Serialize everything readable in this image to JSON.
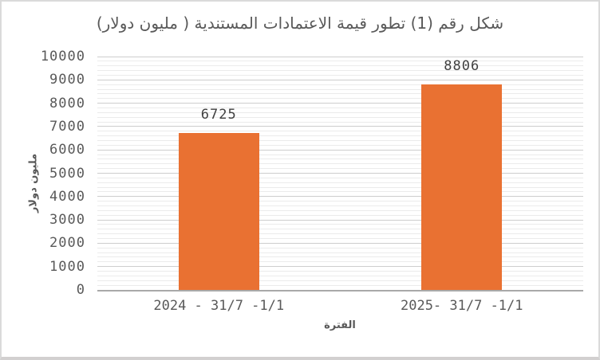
{
  "window": {
    "background": "#ffffff",
    "border_color": "#dadada"
  },
  "chart_data": {
    "type": "bar",
    "title": "شكل رقم (1) تطور قيمة الاعتمادات المستندية ( مليون دولار)",
    "categories": [
      "2024 - 31/7 -1/1",
      "2025- 31/7 -1/1"
    ],
    "values": [
      6725,
      8806
    ],
    "data_labels": [
      "6725",
      "8806"
    ],
    "xlabel": "الفترة",
    "ylabel": "مليون دولار",
    "ylim": [
      0,
      10000
    ],
    "y_major_step": 1000,
    "y_minor_step": 200,
    "y_tick_labels": [
      "0",
      "1000",
      "2000",
      "3000",
      "4000",
      "5000",
      "6000",
      "7000",
      "8000",
      "9000",
      "10000"
    ],
    "grid": "horizontal major and minor gridlines",
    "legend_position": "none",
    "bar_color": "#E97132",
    "title_color": "#595959",
    "tick_color": "#595959",
    "data_label_color": "#404040",
    "major_gridline_color": "#CDCDCD",
    "minor_gridline_color": "#EBEBEB",
    "axis_line_color": "#A9A9A9"
  }
}
